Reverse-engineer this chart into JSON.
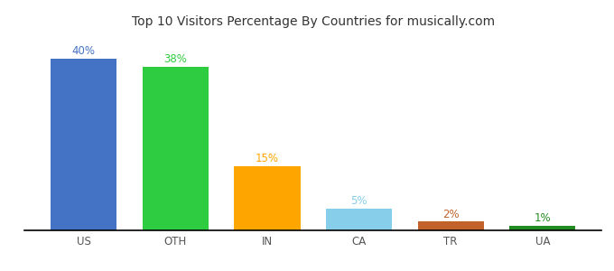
{
  "categories": [
    "US",
    "OTH",
    "IN",
    "CA",
    "TR",
    "UA"
  ],
  "values": [
    40,
    38,
    15,
    5,
    2,
    1
  ],
  "labels": [
    "40%",
    "38%",
    "15%",
    "5%",
    "2%",
    "1%"
  ],
  "bar_colors": [
    "#4472C4",
    "#2ECC40",
    "#FFA500",
    "#87CEEB",
    "#C0622A",
    "#228B22"
  ],
  "label_colors": [
    "#4472C4",
    "#2ECC40",
    "#FFA500",
    "#87CEEB",
    "#C0622A",
    "#228B22"
  ],
  "title": "Top 10 Visitors Percentage By Countries for musically.com",
  "title_fontsize": 10,
  "label_fontsize": 8.5,
  "tick_fontsize": 8.5,
  "ylim": [
    0,
    46
  ],
  "background_color": "#ffffff",
  "bar_width": 0.72
}
